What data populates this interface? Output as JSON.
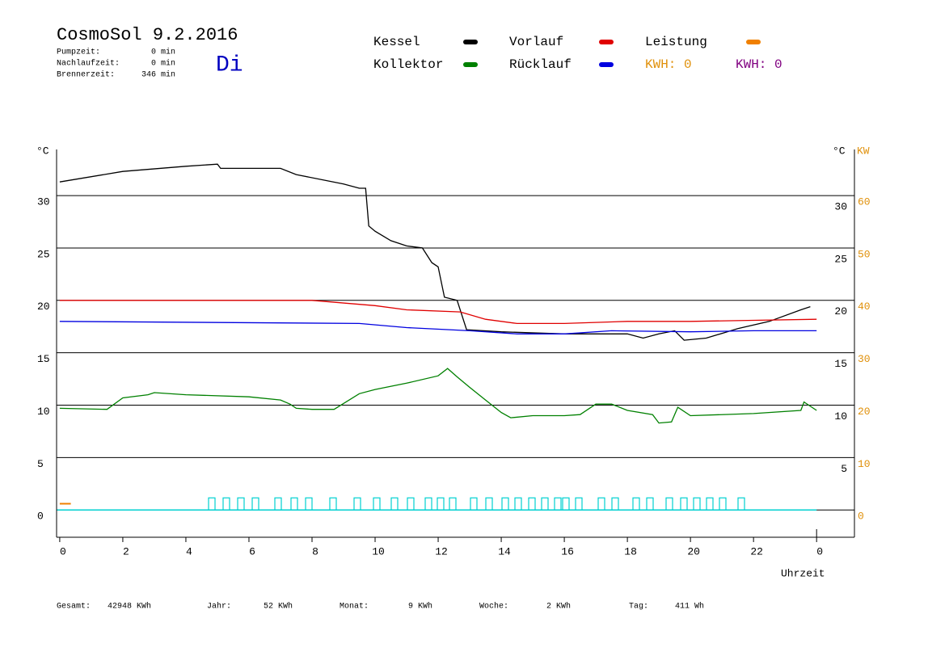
{
  "header": {
    "title": "CosmoSol 9.2.2016",
    "day": "Di",
    "info": [
      {
        "label": "Pumpzeit:",
        "value": "0 min"
      },
      {
        "label": "Nachlaufzeit:",
        "value": "0 min"
      },
      {
        "label": "Brennerzeit:",
        "value": "346 min"
      }
    ]
  },
  "chart_data": {
    "type": "line",
    "y_unit": "°C",
    "y_right_unit": "°C",
    "y2_unit": "KW",
    "x_label": "Uhrzeit",
    "xlim": [
      -0.1,
      25.2
    ],
    "xticks": [
      0,
      2,
      4,
      6,
      8,
      10,
      12,
      14,
      16,
      18,
      20,
      22,
      {
        "value": 24,
        "label": "0"
      }
    ],
    "ylim": [
      -2.6,
      34.4
    ],
    "yticks": [
      0,
      5,
      10,
      15,
      20,
      25,
      30
    ],
    "yticks_right": [
      5,
      10,
      15,
      20,
      25,
      30
    ],
    "y2lim": [
      -5.2,
      68.8
    ],
    "y2ticks": [
      0,
      10,
      20,
      30,
      40,
      50,
      60
    ],
    "grid": true,
    "series": [
      {
        "name": "Kessel",
        "color": "#000000",
        "x": [
          0,
          2,
          4,
          5,
          5.1,
          7,
          7.5,
          9,
          9.5,
          9.7,
          9.8,
          10,
          10.5,
          11,
          11.5,
          11.8,
          12,
          12.2,
          12.6,
          12.9,
          14,
          16,
          18,
          18.5,
          19,
          19.5,
          19.8,
          20.5,
          21.5,
          22.5,
          23.5,
          23.8
        ],
        "values": [
          31.3,
          32.3,
          32.8,
          33.0,
          32.6,
          32.6,
          32.0,
          31.1,
          30.7,
          30.7,
          27.1,
          26.6,
          25.7,
          25.2,
          25.0,
          23.6,
          23.2,
          20.3,
          20.0,
          17.2,
          17.0,
          16.8,
          16.8,
          16.4,
          16.8,
          17.1,
          16.2,
          16.4,
          17.3,
          18.0,
          19.1,
          19.4
        ]
      },
      {
        "name": "Kollektor",
        "color": "#008000",
        "x": [
          0,
          1.5,
          2,
          2.8,
          3,
          4,
          6,
          7,
          7.3,
          7.5,
          8,
          8.7,
          9.5,
          10,
          11,
          12,
          12.3,
          12.6,
          13,
          13.5,
          14,
          14.3,
          15,
          16,
          16.5,
          17,
          17.5,
          18,
          18.8,
          19,
          19.4,
          19.6,
          20,
          22,
          23.5,
          23.6,
          24
        ],
        "values": [
          9.7,
          9.6,
          10.7,
          11.0,
          11.2,
          11.0,
          10.8,
          10.5,
          10.1,
          9.7,
          9.6,
          9.6,
          11.1,
          11.5,
          12.1,
          12.8,
          13.5,
          12.7,
          11.7,
          10.5,
          9.3,
          8.8,
          9.0,
          9.0,
          9.1,
          10.1,
          10.1,
          9.5,
          9.1,
          8.3,
          8.4,
          9.8,
          9.0,
          9.2,
          9.5,
          10.3,
          9.5
        ]
      },
      {
        "name": "Vorlauf",
        "color": "#e00000",
        "x": [
          0,
          8,
          10,
          11,
          12.7,
          13.5,
          14.5,
          16,
          18,
          20,
          22,
          24
        ],
        "values": [
          20.0,
          20.0,
          19.5,
          19.1,
          18.9,
          18.2,
          17.8,
          17.8,
          18.0,
          18.0,
          18.1,
          18.2
        ]
      },
      {
        "name": "Rücklauf",
        "color": "#0000e0",
        "x": [
          0,
          9.5,
          11,
          13,
          14.5,
          16,
          17.5,
          20,
          22,
          24
        ],
        "values": [
          18.0,
          17.8,
          17.4,
          17.1,
          16.8,
          16.8,
          17.1,
          17.0,
          17.1,
          17.1
        ]
      },
      {
        "name": "Leistung",
        "color": "#f08000",
        "axis": "y2",
        "x": [
          0,
          0.35
        ],
        "values": [
          1.2,
          1.2
        ]
      }
    ],
    "kwh_labels": [
      {
        "text": "KWH: 0",
        "color": "#e0900a"
      },
      {
        "text": "KWH: 0",
        "color": "#800080"
      }
    ]
  },
  "footer": [
    {
      "label": "Gesamt:",
      "value": "42948 KWh"
    },
    {
      "label": "Jahr:",
      "value": "52 KWh"
    },
    {
      "label": "Monat:",
      "value": "9 KWh"
    },
    {
      "label": "Woche:",
      "value": "2 KWh"
    },
    {
      "label": "Tag:",
      "value": "411 Wh"
    }
  ]
}
